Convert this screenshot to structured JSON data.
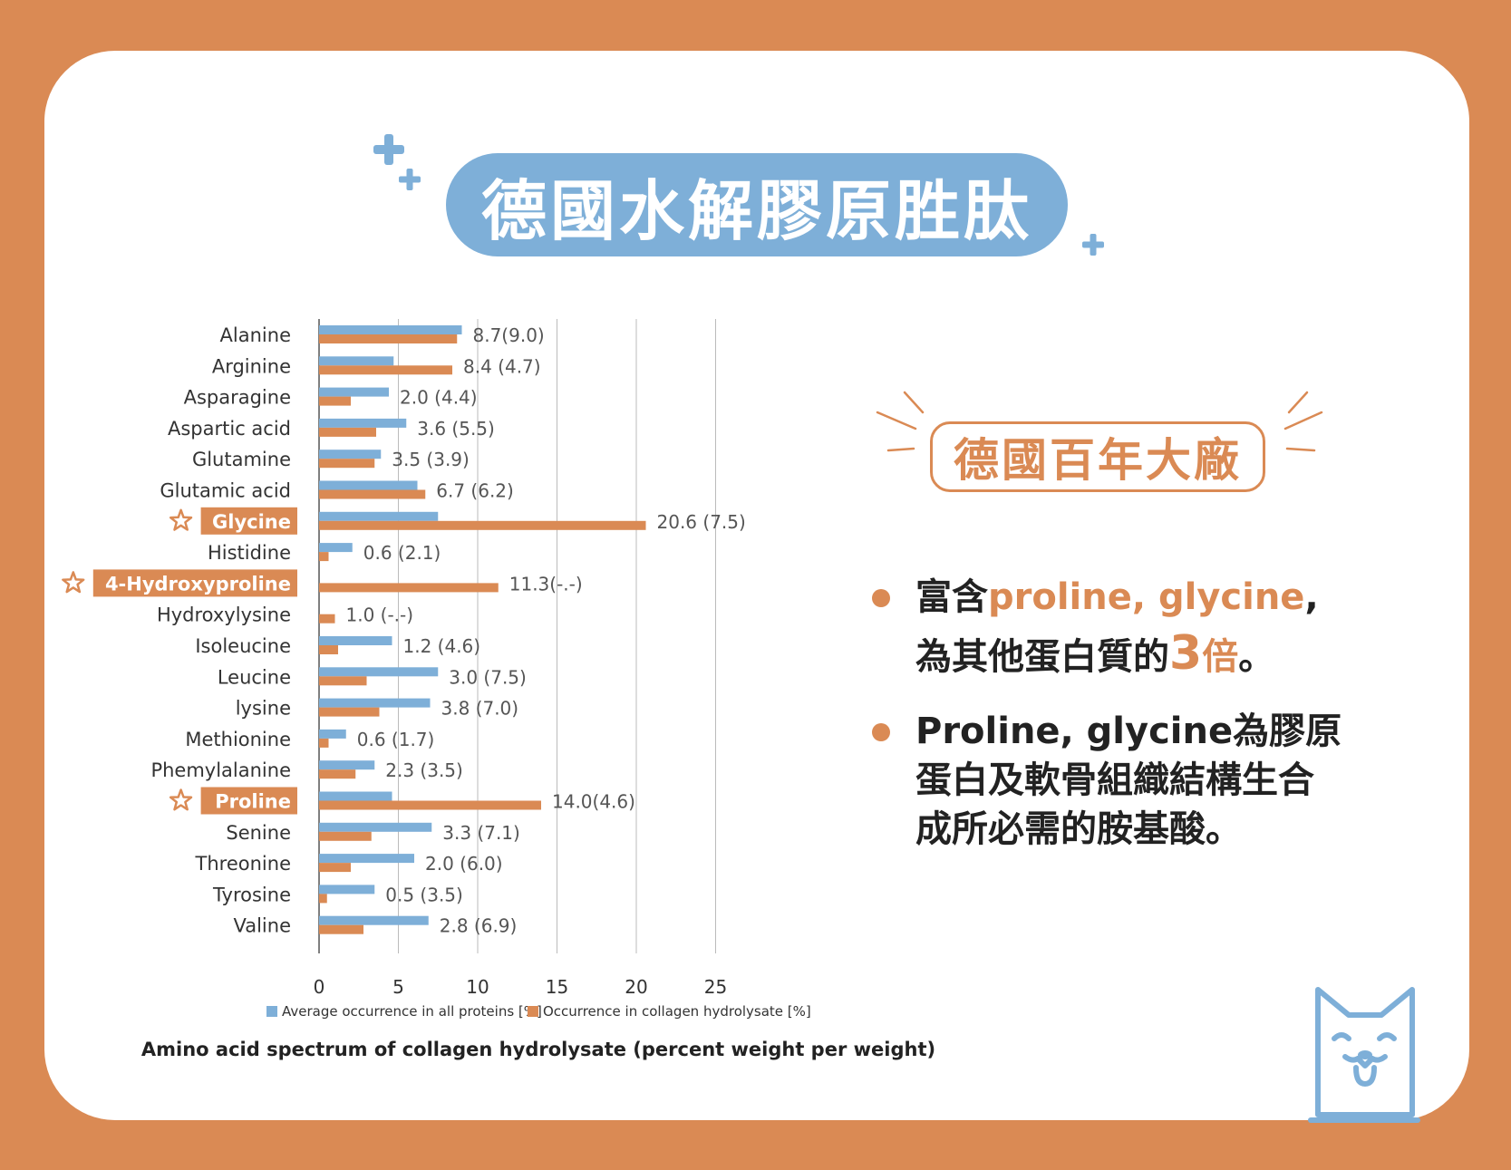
{
  "title": "德國水解膠原胜肽",
  "badge": "德國百年大廠",
  "bullets": {
    "b1_pre": "富含",
    "b1_accent": "proline, glycine",
    "b1_post": ",",
    "b1_line2_pre": "為其他蛋白質的",
    "b1_line2_num": "3",
    "b1_line2_accent": "倍",
    "b1_line2_post": "。",
    "b2_line1": "Proline, glycine為膠原",
    "b2_line2": "蛋白及軟骨組織結構生合",
    "b2_line3": "成所必需的胺基酸。"
  },
  "colors": {
    "background": "#DA8A54",
    "blue": "#7EAFD8",
    "orange": "#DA8A54"
  },
  "icons": {
    "plus": "plus-icon",
    "star": "star-outline-icon",
    "dog": "dog-face-icon"
  },
  "chart_data": {
    "type": "bar",
    "orientation": "horizontal",
    "categories": [
      "Alanine",
      "Arginine",
      "Asparagine",
      "Aspartic acid",
      "Glutamine",
      "Glutamic acid",
      "Glycine",
      "Histidine",
      "4-Hydroxyproline",
      "Hydroxylysine",
      "Isoleucine",
      "Leucine",
      "lysine",
      "Methionine",
      "Phemylalanine",
      "Proline",
      "Senine",
      "Threonine",
      "Tyrosine",
      "Valine"
    ],
    "highlighted": [
      "Glycine",
      "4-Hydroxyproline",
      "Proline"
    ],
    "series": [
      {
        "name": "Average occurrence in all proteins [%]",
        "color": "#7EAFD8",
        "values": [
          9.0,
          4.7,
          4.4,
          5.5,
          3.9,
          6.2,
          7.5,
          2.1,
          null,
          null,
          4.6,
          7.5,
          7.0,
          1.7,
          3.5,
          4.6,
          7.1,
          6.0,
          3.5,
          6.9
        ]
      },
      {
        "name": "Occurrence in collagen hydrolysate [%]",
        "color": "#DA8A54",
        "values": [
          8.7,
          8.4,
          2.0,
          3.6,
          3.5,
          6.7,
          20.6,
          0.6,
          11.3,
          1.0,
          1.2,
          3.0,
          3.8,
          0.6,
          2.3,
          14.0,
          3.3,
          2.0,
          0.5,
          2.8
        ]
      }
    ],
    "value_labels": [
      "8.7(9.0)",
      "8.4 (4.7)",
      "2.0 (4.4)",
      "3.6 (5.5)",
      "3.5 (3.9)",
      "6.7 (6.2)",
      "20.6 (7.5)",
      "0.6 (2.1)",
      "11.3(-.-)",
      "1.0 (-.-)",
      "1.2 (4.6)",
      "3.0 (7.5)",
      "3.8 (7.0)",
      "0.6 (1.7)",
      "2.3 (3.5)",
      "14.0(4.6)",
      "3.3 (7.1)",
      "2.0 (6.0)",
      "0.5 (3.5)",
      "2.8 (6.9)"
    ],
    "x_ticks": [
      0,
      5,
      10,
      15,
      20,
      25
    ],
    "xlim": [
      0,
      25
    ],
    "grid": true,
    "legend_position": "bottom",
    "caption": "Amino acid spectrum of collagen hydrolysate (percent weight per weight)"
  }
}
